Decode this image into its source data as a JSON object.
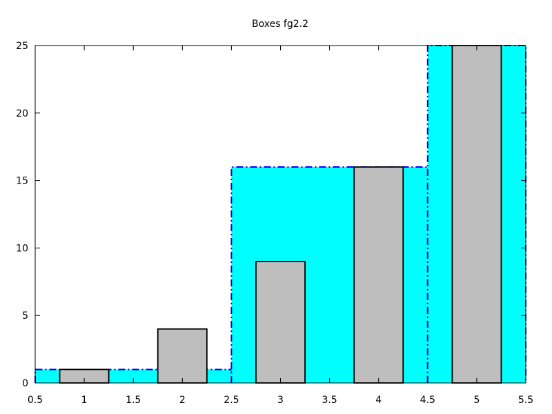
{
  "chart_data": {
    "type": "bar",
    "title": "Boxes fg2.2",
    "xlabel": "",
    "ylabel": "",
    "xlim": [
      0.5,
      5.5
    ],
    "ylim": [
      0,
      25
    ],
    "xticks": [
      0.5,
      1,
      1.5,
      2,
      2.5,
      3,
      3.5,
      4,
      4.5,
      5,
      5.5
    ],
    "xtick_labels": [
      "0.5",
      "1",
      "1.5",
      "2",
      "2.5",
      "3",
      "3.5",
      "4",
      "4.5",
      "5",
      "5.5"
    ],
    "yticks": [
      0,
      5,
      10,
      15,
      20,
      25
    ],
    "ytick_labels": [
      "0",
      "5",
      "10",
      "15",
      "20",
      "25"
    ],
    "grid": false,
    "series": [
      {
        "style": "filled boxes, dash-dot outline",
        "fill_color": "#00ffff",
        "border_color": "#0000ff",
        "boxes": [
          {
            "x0": 0.5,
            "x1": 2.5,
            "y": 1
          },
          {
            "x0": 2.5,
            "x1": 4.5,
            "y": 16
          },
          {
            "x0": 4.5,
            "x1": 5.5,
            "y": 25
          }
        ]
      },
      {
        "style": "filled boxes, solid outline",
        "fill_color": "#bebebe",
        "border_color": "#000000",
        "boxes": [
          {
            "x0": 0.75,
            "x1": 1.25,
            "y": 1
          },
          {
            "x0": 1.75,
            "x1": 2.25,
            "y": 4
          },
          {
            "x0": 2.75,
            "x1": 3.25,
            "y": 9
          },
          {
            "x0": 3.75,
            "x1": 4.25,
            "y": 16
          },
          {
            "x0": 4.75,
            "x1": 5.25,
            "y": 25
          }
        ]
      }
    ]
  }
}
